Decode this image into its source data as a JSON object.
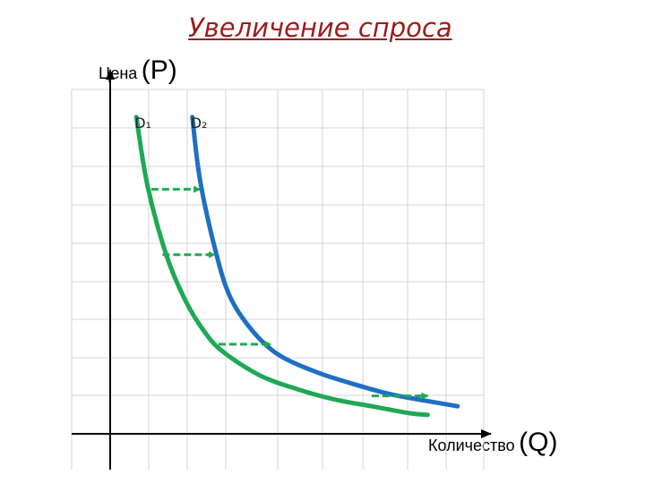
{
  "chart_data": {
    "type": "line",
    "title": "Увеличение спроса",
    "ylabel": {
      "word": "Цена",
      "symbol": "(P)"
    },
    "xlabel": {
      "word": "Количество",
      "symbol": "(Q)"
    },
    "xlim": [
      0,
      10
    ],
    "ylim": [
      0,
      10
    ],
    "grid": true,
    "series": [
      {
        "name": "D₁",
        "color": "#1fa855",
        "points": [
          [
            0.7,
            9.2
          ],
          [
            1.0,
            7.2
          ],
          [
            1.5,
            5.2
          ],
          [
            2.0,
            3.9
          ],
          [
            2.5,
            3.0
          ],
          [
            3.0,
            2.4
          ],
          [
            4.0,
            1.7
          ],
          [
            5.0,
            1.3
          ],
          [
            6.0,
            1.0
          ],
          [
            7.0,
            0.8
          ],
          [
            8.0,
            0.6
          ],
          [
            8.5,
            0.55
          ]
        ]
      },
      {
        "name": "D₂",
        "color": "#1f6fc4",
        "points": [
          [
            2.2,
            9.2
          ],
          [
            2.4,
            7.4
          ],
          [
            2.8,
            5.4
          ],
          [
            3.2,
            4.0
          ],
          [
            3.8,
            3.0
          ],
          [
            4.5,
            2.3
          ],
          [
            5.5,
            1.8
          ],
          [
            6.5,
            1.45
          ],
          [
            7.5,
            1.15
          ],
          [
            8.5,
            0.95
          ],
          [
            9.3,
            0.8
          ]
        ]
      }
    ],
    "shifts": [
      {
        "from": [
          1.1,
          7.1
        ],
        "to": [
          2.4,
          7.1
        ]
      },
      {
        "from": [
          1.4,
          5.2
        ],
        "to": [
          2.8,
          5.2
        ]
      },
      {
        "from": [
          2.9,
          2.6
        ],
        "to": [
          4.3,
          2.6
        ]
      },
      {
        "from": [
          7.0,
          1.1
        ],
        "to": [
          8.5,
          1.1
        ]
      }
    ],
    "colors": {
      "title": "#9b1d1d",
      "axis": "#000000",
      "grid": "#d4d4d4",
      "arrow": "#1fa855"
    }
  }
}
